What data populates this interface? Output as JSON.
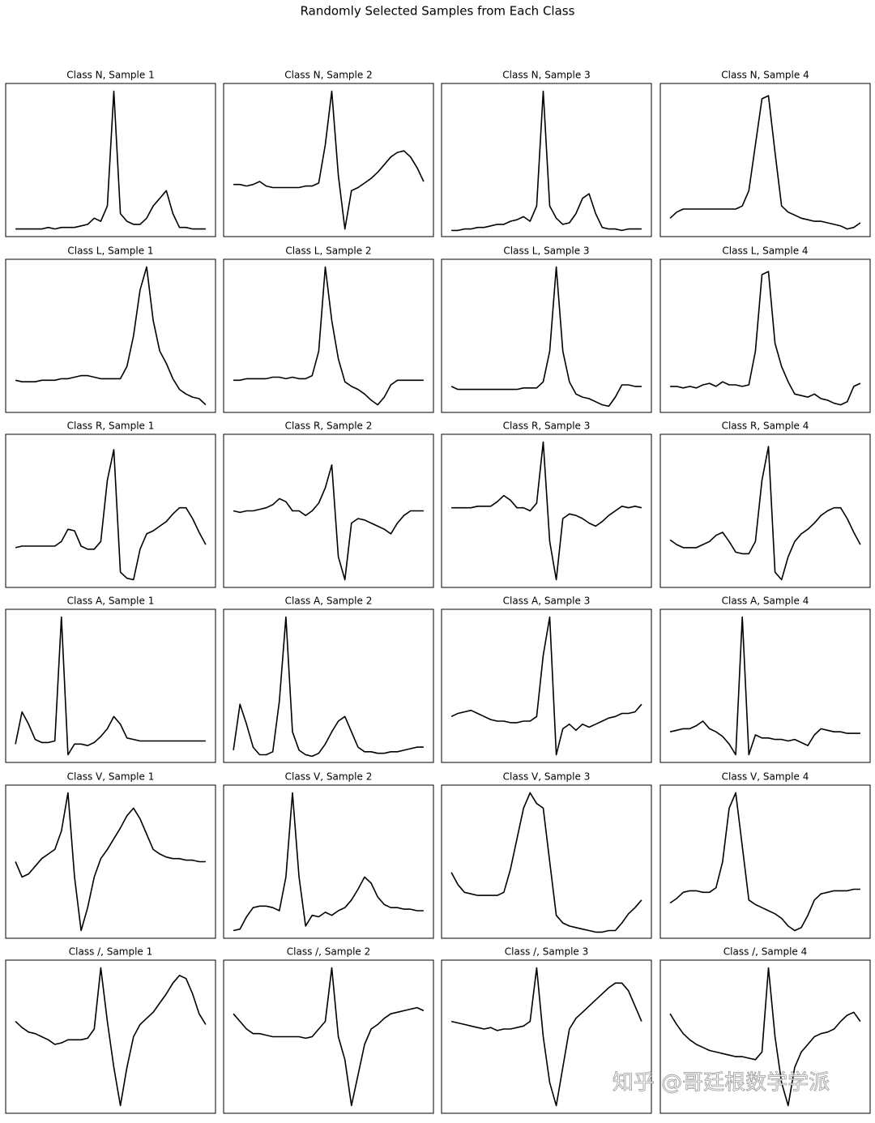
{
  "title": "Randomly Selected Samples from Each Class",
  "watermark": "知乎 @哥廷根数学学派",
  "chart_data": [
    {
      "type": "line",
      "title": "Class N, Sample 1",
      "color": "#000000",
      "xlim": [
        -1.5,
        30.5
      ],
      "ylim": [
        0,
        1
      ],
      "values": [
        0.05,
        0.05,
        0.05,
        0.05,
        0.05,
        0.06,
        0.05,
        0.06,
        0.06,
        0.06,
        0.07,
        0.08,
        0.12,
        0.1,
        0.2,
        0.95,
        0.15,
        0.1,
        0.08,
        0.08,
        0.12,
        0.2,
        0.25,
        0.3,
        0.15,
        0.06,
        0.06,
        0.05,
        0.05,
        0.05
      ]
    },
    {
      "type": "line",
      "title": "Class N, Sample 2",
      "color": "#000000",
      "xlim": [
        -1.5,
        30.5
      ],
      "ylim": [
        0,
        1
      ],
      "values": [
        0.34,
        0.34,
        0.33,
        0.34,
        0.36,
        0.33,
        0.32,
        0.32,
        0.32,
        0.32,
        0.32,
        0.33,
        0.33,
        0.35,
        0.6,
        0.95,
        0.4,
        0.05,
        0.3,
        0.32,
        0.35,
        0.38,
        0.42,
        0.47,
        0.52,
        0.55,
        0.56,
        0.52,
        0.45,
        0.36
      ]
    },
    {
      "type": "line",
      "title": "Class N, Sample 3",
      "color": "#000000",
      "xlim": [
        -1.5,
        30.5
      ],
      "ylim": [
        0,
        1
      ],
      "values": [
        0.04,
        0.04,
        0.05,
        0.05,
        0.06,
        0.06,
        0.07,
        0.08,
        0.08,
        0.1,
        0.11,
        0.13,
        0.1,
        0.2,
        0.95,
        0.2,
        0.12,
        0.08,
        0.09,
        0.15,
        0.25,
        0.28,
        0.15,
        0.06,
        0.05,
        0.05,
        0.04,
        0.05,
        0.05,
        0.05
      ]
    },
    {
      "type": "line",
      "title": "Class N, Sample 4",
      "color": "#000000",
      "xlim": [
        -1.5,
        30.5
      ],
      "ylim": [
        0,
        1
      ],
      "values": [
        0.12,
        0.16,
        0.18,
        0.18,
        0.18,
        0.18,
        0.18,
        0.18,
        0.18,
        0.18,
        0.18,
        0.2,
        0.3,
        0.6,
        0.9,
        0.92,
        0.55,
        0.2,
        0.16,
        0.14,
        0.12,
        0.11,
        0.1,
        0.1,
        0.09,
        0.08,
        0.07,
        0.05,
        0.06,
        0.09
      ]
    },
    {
      "type": "line",
      "title": "Class L, Sample 1",
      "color": "#000000",
      "xlim": [
        -1.5,
        30.5
      ],
      "ylim": [
        0,
        1
      ],
      "values": [
        0.21,
        0.2,
        0.2,
        0.2,
        0.21,
        0.21,
        0.21,
        0.22,
        0.22,
        0.23,
        0.24,
        0.24,
        0.23,
        0.22,
        0.22,
        0.22,
        0.22,
        0.3,
        0.5,
        0.8,
        0.95,
        0.6,
        0.4,
        0.32,
        0.22,
        0.15,
        0.12,
        0.1,
        0.09,
        0.05
      ]
    },
    {
      "type": "line",
      "title": "Class L, Sample 2",
      "color": "#000000",
      "xlim": [
        -1.5,
        30.5
      ],
      "ylim": [
        0,
        1
      ],
      "values": [
        0.21,
        0.21,
        0.22,
        0.22,
        0.22,
        0.22,
        0.23,
        0.23,
        0.22,
        0.23,
        0.22,
        0.22,
        0.24,
        0.4,
        0.95,
        0.6,
        0.35,
        0.2,
        0.17,
        0.15,
        0.12,
        0.08,
        0.05,
        0.1,
        0.18,
        0.21,
        0.21,
        0.21,
        0.21,
        0.21
      ]
    },
    {
      "type": "line",
      "title": "Class L, Sample 3",
      "color": "#000000",
      "xlim": [
        -1.5,
        30.5
      ],
      "ylim": [
        0,
        1
      ],
      "values": [
        0.17,
        0.15,
        0.15,
        0.15,
        0.15,
        0.15,
        0.15,
        0.15,
        0.15,
        0.15,
        0.15,
        0.16,
        0.16,
        0.16,
        0.2,
        0.4,
        0.95,
        0.4,
        0.2,
        0.12,
        0.1,
        0.09,
        0.07,
        0.05,
        0.04,
        0.1,
        0.18,
        0.18,
        0.17,
        0.17
      ]
    },
    {
      "type": "line",
      "title": "Class L, Sample 4",
      "color": "#000000",
      "xlim": [
        -1.5,
        30.5
      ],
      "ylim": [
        0,
        1
      ],
      "values": [
        0.17,
        0.17,
        0.16,
        0.17,
        0.16,
        0.18,
        0.19,
        0.17,
        0.2,
        0.18,
        0.18,
        0.17,
        0.18,
        0.4,
        0.9,
        0.92,
        0.45,
        0.3,
        0.2,
        0.12,
        0.11,
        0.1,
        0.12,
        0.09,
        0.08,
        0.06,
        0.05,
        0.07,
        0.17,
        0.19
      ]
    },
    {
      "type": "line",
      "title": "Class R, Sample 1",
      "color": "#000000",
      "xlim": [
        -1.5,
        30.5
      ],
      "ylim": [
        0,
        1
      ],
      "values": [
        0.26,
        0.27,
        0.27,
        0.27,
        0.27,
        0.27,
        0.27,
        0.3,
        0.38,
        0.37,
        0.27,
        0.25,
        0.25,
        0.3,
        0.7,
        0.9,
        0.1,
        0.06,
        0.05,
        0.25,
        0.35,
        0.37,
        0.4,
        0.43,
        0.48,
        0.52,
        0.52,
        0.45,
        0.36,
        0.28
      ]
    },
    {
      "type": "line",
      "title": "Class R, Sample 2",
      "color": "#000000",
      "xlim": [
        -1.5,
        30.5
      ],
      "ylim": [
        0,
        1
      ],
      "values": [
        0.5,
        0.49,
        0.5,
        0.5,
        0.51,
        0.52,
        0.54,
        0.58,
        0.56,
        0.5,
        0.5,
        0.47,
        0.5,
        0.55,
        0.65,
        0.8,
        0.2,
        0.05,
        0.42,
        0.45,
        0.44,
        0.42,
        0.4,
        0.38,
        0.35,
        0.42,
        0.47,
        0.5,
        0.5,
        0.5
      ]
    },
    {
      "type": "line",
      "title": "Class R, Sample 3",
      "color": "#000000",
      "xlim": [
        -1.5,
        30.5
      ],
      "ylim": [
        0,
        1
      ],
      "values": [
        0.52,
        0.52,
        0.52,
        0.52,
        0.53,
        0.53,
        0.53,
        0.56,
        0.6,
        0.57,
        0.52,
        0.52,
        0.5,
        0.55,
        0.95,
        0.3,
        0.05,
        0.45,
        0.48,
        0.47,
        0.45,
        0.42,
        0.4,
        0.43,
        0.47,
        0.5,
        0.53,
        0.52,
        0.53,
        0.52
      ]
    },
    {
      "type": "line",
      "title": "Class R, Sample 4",
      "color": "#000000",
      "xlim": [
        -1.5,
        30.5
      ],
      "ylim": [
        0,
        1
      ],
      "values": [
        0.31,
        0.28,
        0.26,
        0.26,
        0.26,
        0.28,
        0.3,
        0.34,
        0.36,
        0.3,
        0.23,
        0.22,
        0.22,
        0.3,
        0.7,
        0.92,
        0.1,
        0.05,
        0.2,
        0.3,
        0.35,
        0.38,
        0.42,
        0.47,
        0.5,
        0.52,
        0.52,
        0.45,
        0.36,
        0.28
      ]
    },
    {
      "type": "line",
      "title": "Class A, Sample 1",
      "color": "#000000",
      "xlim": [
        -1.5,
        30.5
      ],
      "ylim": [
        0,
        1
      ],
      "values": [
        0.12,
        0.33,
        0.25,
        0.15,
        0.13,
        0.13,
        0.14,
        0.95,
        0.05,
        0.12,
        0.12,
        0.11,
        0.13,
        0.17,
        0.22,
        0.3,
        0.25,
        0.16,
        0.15,
        0.14,
        0.14,
        0.14,
        0.14,
        0.14,
        0.14,
        0.14,
        0.14,
        0.14,
        0.14,
        0.14
      ]
    },
    {
      "type": "line",
      "title": "Class A, Sample 2",
      "color": "#000000",
      "xlim": [
        -1.5,
        30.5
      ],
      "ylim": [
        0,
        1
      ],
      "values": [
        0.08,
        0.38,
        0.25,
        0.1,
        0.05,
        0.05,
        0.07,
        0.4,
        0.95,
        0.2,
        0.08,
        0.05,
        0.04,
        0.06,
        0.12,
        0.2,
        0.27,
        0.3,
        0.2,
        0.1,
        0.07,
        0.07,
        0.06,
        0.06,
        0.07,
        0.07,
        0.08,
        0.09,
        0.1,
        0.1
      ]
    },
    {
      "type": "line",
      "title": "Class A, Sample 3",
      "color": "#000000",
      "xlim": [
        -1.5,
        30.5
      ],
      "ylim": [
        0,
        1
      ],
      "values": [
        0.3,
        0.32,
        0.33,
        0.34,
        0.32,
        0.3,
        0.28,
        0.27,
        0.27,
        0.26,
        0.26,
        0.27,
        0.27,
        0.3,
        0.7,
        0.95,
        0.05,
        0.22,
        0.25,
        0.21,
        0.25,
        0.23,
        0.25,
        0.27,
        0.29,
        0.3,
        0.32,
        0.32,
        0.33,
        0.38
      ]
    },
    {
      "type": "line",
      "title": "Class A, Sample 4",
      "color": "#000000",
      "xlim": [
        -1.5,
        30.5
      ],
      "ylim": [
        0,
        1
      ],
      "values": [
        0.2,
        0.21,
        0.22,
        0.22,
        0.24,
        0.27,
        0.22,
        0.2,
        0.17,
        0.12,
        0.05,
        0.95,
        0.05,
        0.18,
        0.16,
        0.16,
        0.15,
        0.15,
        0.14,
        0.15,
        0.13,
        0.11,
        0.18,
        0.22,
        0.21,
        0.2,
        0.2,
        0.19,
        0.19,
        0.19
      ]
    },
    {
      "type": "line",
      "title": "Class V, Sample 1",
      "color": "#000000",
      "xlim": [
        -1.5,
        30.5
      ],
      "ylim": [
        0,
        1
      ],
      "values": [
        0.5,
        0.4,
        0.42,
        0.47,
        0.52,
        0.55,
        0.58,
        0.7,
        0.95,
        0.4,
        0.05,
        0.2,
        0.4,
        0.52,
        0.58,
        0.65,
        0.72,
        0.8,
        0.85,
        0.78,
        0.68,
        0.58,
        0.55,
        0.53,
        0.52,
        0.52,
        0.51,
        0.51,
        0.5,
        0.5
      ]
    },
    {
      "type": "line",
      "title": "Class V, Sample 2",
      "color": "#000000",
      "xlim": [
        -1.5,
        30.5
      ],
      "ylim": [
        0,
        1
      ],
      "values": [
        0.05,
        0.06,
        0.14,
        0.2,
        0.21,
        0.21,
        0.2,
        0.18,
        0.4,
        0.95,
        0.4,
        0.08,
        0.15,
        0.14,
        0.17,
        0.15,
        0.18,
        0.2,
        0.25,
        0.32,
        0.4,
        0.36,
        0.27,
        0.22,
        0.2,
        0.2,
        0.19,
        0.19,
        0.18,
        0.18
      ]
    },
    {
      "type": "line",
      "title": "Class V, Sample 3",
      "color": "#000000",
      "xlim": [
        -1.5,
        30.5
      ],
      "ylim": [
        0,
        1
      ],
      "values": [
        0.43,
        0.35,
        0.3,
        0.29,
        0.28,
        0.28,
        0.28,
        0.28,
        0.3,
        0.45,
        0.65,
        0.85,
        0.95,
        0.88,
        0.85,
        0.5,
        0.15,
        0.1,
        0.08,
        0.07,
        0.06,
        0.05,
        0.04,
        0.04,
        0.05,
        0.05,
        0.1,
        0.16,
        0.2,
        0.25
      ]
    },
    {
      "type": "line",
      "title": "Class V, Sample 4",
      "color": "#000000",
      "xlim": [
        -1.5,
        30.5
      ],
      "ylim": [
        0,
        1
      ],
      "values": [
        0.23,
        0.26,
        0.3,
        0.31,
        0.31,
        0.3,
        0.3,
        0.33,
        0.5,
        0.85,
        0.95,
        0.6,
        0.25,
        0.22,
        0.2,
        0.18,
        0.16,
        0.13,
        0.08,
        0.05,
        0.07,
        0.15,
        0.25,
        0.29,
        0.3,
        0.31,
        0.31,
        0.31,
        0.32,
        0.32
      ]
    },
    {
      "type": "line",
      "title": "Class /, Sample 1",
      "color": "#000000",
      "xlim": [
        -1.5,
        30.5
      ],
      "ylim": [
        0,
        1
      ],
      "values": [
        0.6,
        0.56,
        0.53,
        0.52,
        0.5,
        0.48,
        0.45,
        0.46,
        0.48,
        0.48,
        0.48,
        0.49,
        0.55,
        0.95,
        0.6,
        0.3,
        0.05,
        0.3,
        0.5,
        0.58,
        0.62,
        0.66,
        0.72,
        0.78,
        0.85,
        0.9,
        0.88,
        0.78,
        0.65,
        0.58
      ]
    },
    {
      "type": "line",
      "title": "Class /, Sample 2",
      "color": "#000000",
      "xlim": [
        -1.5,
        30.5
      ],
      "ylim": [
        0,
        1
      ],
      "values": [
        0.65,
        0.6,
        0.55,
        0.52,
        0.52,
        0.51,
        0.5,
        0.5,
        0.5,
        0.5,
        0.5,
        0.49,
        0.5,
        0.55,
        0.6,
        0.95,
        0.5,
        0.35,
        0.05,
        0.25,
        0.45,
        0.55,
        0.58,
        0.62,
        0.65,
        0.66,
        0.67,
        0.68,
        0.69,
        0.67
      ]
    },
    {
      "type": "line",
      "title": "Class /, Sample 3",
      "color": "#000000",
      "xlim": [
        -1.5,
        30.5
      ],
      "ylim": [
        0,
        1
      ],
      "values": [
        0.6,
        0.59,
        0.58,
        0.57,
        0.56,
        0.55,
        0.56,
        0.54,
        0.55,
        0.55,
        0.56,
        0.57,
        0.6,
        0.95,
        0.5,
        0.2,
        0.05,
        0.3,
        0.55,
        0.62,
        0.66,
        0.7,
        0.74,
        0.78,
        0.82,
        0.85,
        0.85,
        0.8,
        0.7,
        0.6
      ]
    },
    {
      "type": "line",
      "title": "Class /, Sample 4",
      "color": "#000000",
      "xlim": [
        -1.5,
        30.5
      ],
      "ylim": [
        0,
        1
      ],
      "values": [
        0.65,
        0.58,
        0.52,
        0.48,
        0.45,
        0.43,
        0.41,
        0.4,
        0.39,
        0.38,
        0.37,
        0.37,
        0.36,
        0.35,
        0.4,
        0.95,
        0.5,
        0.2,
        0.05,
        0.3,
        0.4,
        0.45,
        0.5,
        0.52,
        0.53,
        0.55,
        0.6,
        0.64,
        0.66,
        0.6
      ]
    }
  ]
}
